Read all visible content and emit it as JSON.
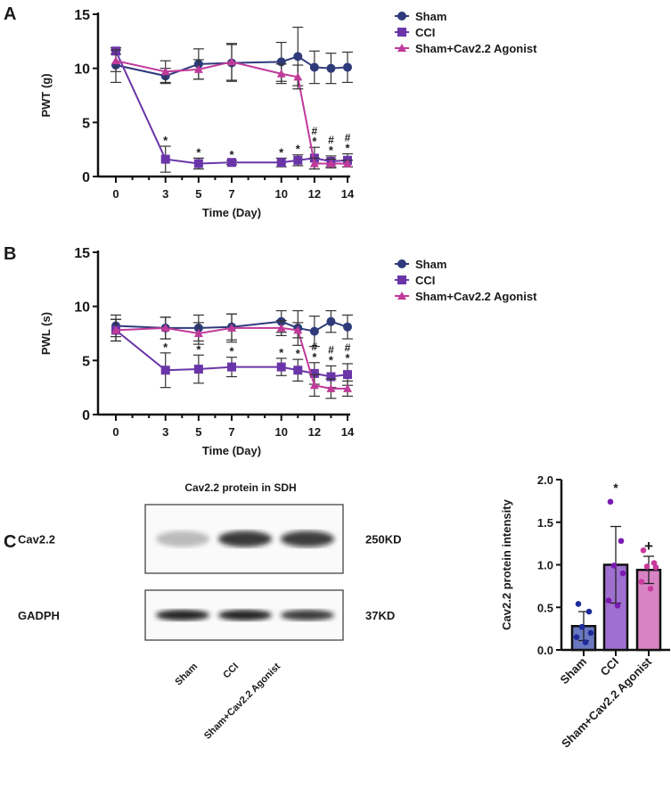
{
  "chart_data": [
    {
      "type": "line",
      "panel": "A",
      "ylabel": "PWT (g)",
      "xlabel": "Time (Day)",
      "ylim": [
        0,
        15
      ],
      "yticks": [
        0,
        5,
        10,
        15
      ],
      "xticks": [
        0,
        3,
        5,
        7,
        10,
        12,
        14
      ],
      "x": [
        0,
        3,
        5,
        7,
        10,
        11,
        12,
        13,
        14
      ],
      "legend_position": "right",
      "series": [
        {
          "name": "Sham",
          "color": "#2e3a7a",
          "marker": "circle",
          "values": [
            10.3,
            9.3,
            10.4,
            10.5,
            10.6,
            11.1,
            10.1,
            10.0,
            10.1
          ],
          "errors": [
            1.6,
            0.7,
            1.4,
            1.7,
            1.8,
            2.7,
            1.5,
            1.4,
            1.4
          ]
        },
        {
          "name": "CCI",
          "color": "#6a35a8",
          "marker": "square",
          "values": [
            11.6,
            1.6,
            1.2,
            1.3,
            1.3,
            1.5,
            1.7,
            1.4,
            1.5
          ],
          "errors": [
            0.3,
            1.2,
            0.5,
            0.2,
            0.4,
            0.5,
            1.0,
            0.5,
            0.6
          ]
        },
        {
          "name": "Sham+Cav2.2 Agonist",
          "color": "#c03a9a",
          "marker": "triangle",
          "values": [
            10.7,
            9.7,
            9.9,
            10.6,
            9.5,
            9.2,
            1.2,
            1.2,
            1.2
          ],
          "errors": [
            1.0,
            1.0,
            0.9,
            1.7,
            0.9,
            1.1,
            0.5,
            0.4,
            0.3
          ]
        }
      ],
      "star_days": [
        3,
        5,
        7,
        10,
        11,
        12,
        13,
        14
      ],
      "hash_days": [
        12,
        13,
        14
      ],
      "star": "*",
      "hash": "#"
    },
    {
      "type": "line",
      "panel": "B",
      "ylabel": "PWL (s)",
      "xlabel": "Time (Day)",
      "ylim": [
        0,
        15
      ],
      "yticks": [
        0,
        5,
        10,
        15
      ],
      "xticks": [
        0,
        3,
        5,
        7,
        10,
        12,
        14
      ],
      "x": [
        0,
        3,
        5,
        7,
        10,
        11,
        12,
        13,
        14
      ],
      "legend_position": "right",
      "series": [
        {
          "name": "Sham",
          "color": "#2e3a7a",
          "marker": "circle",
          "values": [
            8.2,
            8.0,
            8.0,
            8.1,
            8.6,
            8.0,
            7.7,
            8.6,
            8.1
          ],
          "errors": [
            1.0,
            1.0,
            1.2,
            1.2,
            1.0,
            1.6,
            1.4,
            1.0,
            1.1
          ]
        },
        {
          "name": "CCI",
          "color": "#6a35a8",
          "marker": "square",
          "values": [
            7.8,
            4.1,
            4.2,
            4.4,
            4.4,
            4.1,
            3.8,
            3.5,
            3.7
          ],
          "errors": [
            1.0,
            1.6,
            1.3,
            0.9,
            0.8,
            1.0,
            1.0,
            1.0,
            1.0
          ]
        },
        {
          "name": "Sham+Cav2.2 Agonist",
          "color": "#c03a9a",
          "marker": "triangle",
          "values": [
            7.8,
            8.0,
            7.5,
            8.0,
            8.0,
            7.8,
            2.7,
            2.4,
            2.4
          ],
          "errors": [
            1.0,
            1.0,
            1.0,
            1.3,
            0.7,
            0.7,
            1.0,
            0.9,
            0.7
          ]
        }
      ],
      "star_days": [
        3,
        5,
        7,
        10,
        11,
        12,
        13,
        14
      ],
      "hash_days": [
        12,
        13,
        14
      ],
      "star": "*",
      "hash": "#"
    },
    {
      "type": "bar",
      "panel": "C",
      "ylabel": "Cav2.2 protein intensity",
      "ylim": [
        0,
        2.0
      ],
      "yticks": [
        "0.0",
        "0.5",
        "1.0",
        "1.5",
        "2.0"
      ],
      "categories": [
        "Sham",
        "CCI",
        "Sham+Cav2.2 Agonist"
      ],
      "values": [
        0.28,
        1.0,
        0.94
      ],
      "errors": [
        0.17,
        0.45,
        0.16
      ],
      "fill_colors": [
        "#6a78c0",
        "#a070d0",
        "#d884c4"
      ],
      "point_colors": [
        "#1c2a9a",
        "#7a1ab0",
        "#c83a9c"
      ],
      "points": [
        [
          0.54,
          0.45,
          0.27,
          0.2,
          0.15,
          0.09
        ],
        [
          1.74,
          1.28,
          0.99,
          0.9,
          0.58,
          0.52
        ],
        [
          1.17,
          1.02,
          0.98,
          0.97,
          0.8,
          0.72
        ]
      ],
      "annotations": [
        "",
        "*",
        "+"
      ]
    }
  ],
  "panels": {
    "a": "A",
    "b": "B",
    "c": "C"
  },
  "blot": {
    "title": "Cav2.2 protein in SDH",
    "rows": [
      {
        "label": "Cav2.2",
        "size": "250KD"
      },
      {
        "label": "GADPH",
        "size": "37KD"
      }
    ],
    "lanes": [
      "Sham",
      "CCI",
      "Sham+Cav2.2 Agonist"
    ],
    "intensity": [
      [
        0.25,
        0.85,
        0.8
      ],
      [
        0.95,
        0.95,
        0.85
      ]
    ]
  }
}
